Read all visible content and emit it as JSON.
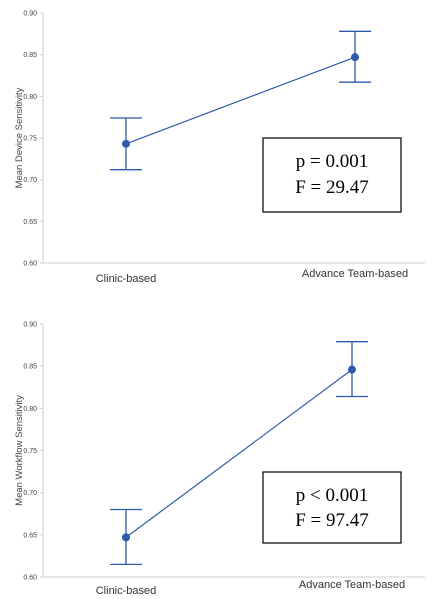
{
  "colors": {
    "series": "#2e5bab",
    "axis": "#cfcfcf",
    "text": "#444444",
    "box_border": "#000000"
  },
  "chart_data": [
    {
      "type": "line",
      "categories": [
        "Clinic-based",
        "Advance Team-based"
      ],
      "ylabel": "Mean Device Sensitivity",
      "ylim": [
        0.6,
        0.9
      ],
      "yticks": [
        "0.60",
        "0.65",
        "0.70",
        "0.75",
        "0.80",
        "0.85",
        "0.90"
      ],
      "grid": false,
      "series": [
        {
          "values": [
            0.743,
            0.847
          ],
          "error_low": [
            0.712,
            0.817
          ],
          "error_high": [
            0.774,
            0.878
          ]
        }
      ],
      "annotation": {
        "lines": [
          "p = 0.001",
          "F = 29.47"
        ]
      }
    },
    {
      "type": "line",
      "categories": [
        "Clinic-based",
        "Advance Team-based"
      ],
      "ylabel": "Mean Workflow Sensitivity",
      "ylim": [
        0.6,
        0.9
      ],
      "yticks": [
        "0.60",
        "0.65",
        "0.70",
        "0.75",
        "0.80",
        "0.85",
        "0.90"
      ],
      "grid": false,
      "series": [
        {
          "values": [
            0.647,
            0.846
          ],
          "error_low": [
            0.615,
            0.814
          ],
          "error_high": [
            0.68,
            0.879
          ]
        }
      ],
      "annotation": {
        "lines": [
          "p < 0.001",
          "F = 97.47"
        ]
      }
    }
  ]
}
